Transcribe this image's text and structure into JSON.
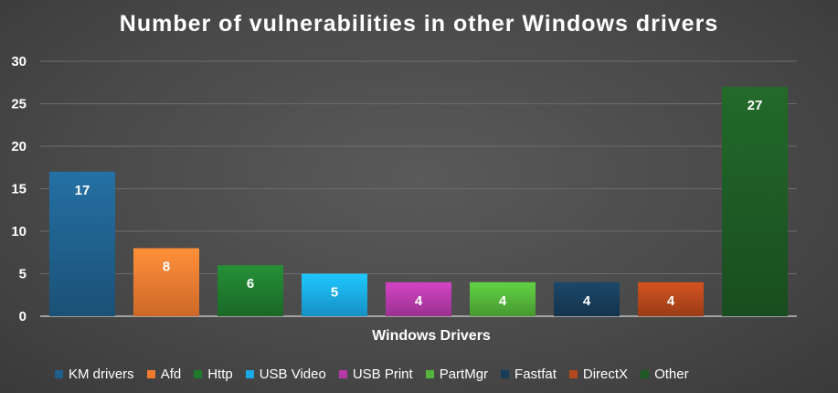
{
  "chart_data": {
    "type": "bar",
    "title": "Number of vulnerabilities in other Windows drivers",
    "xlabel": "Windows Drivers",
    "ylabel": "",
    "ylim": [
      0,
      30
    ],
    "yticks": [
      0,
      5,
      10,
      15,
      20,
      25,
      30
    ],
    "grid": true,
    "legend": "bottom",
    "series": [
      {
        "name": "KM drivers",
        "values": [
          17
        ],
        "color": "#1f5f8b"
      },
      {
        "name": "Afd",
        "values": [
          8
        ],
        "color": "#f07a30"
      },
      {
        "name": "Http",
        "values": [
          6
        ],
        "color": "#1f7a2e"
      },
      {
        "name": "USB Video",
        "values": [
          5
        ],
        "color": "#1aa9e6"
      },
      {
        "name": "USB Print",
        "values": [
          4
        ],
        "color": "#b43aa8"
      },
      {
        "name": "PartMgr",
        "values": [
          4
        ],
        "color": "#53b33a"
      },
      {
        "name": "Fastfat",
        "values": [
          4
        ],
        "color": "#173d5a"
      },
      {
        "name": "DirectX",
        "values": [
          4
        ],
        "color": "#b4471b"
      },
      {
        "name": "Other",
        "values": [
          27
        ],
        "color": "#1d5a24"
      }
    ]
  }
}
